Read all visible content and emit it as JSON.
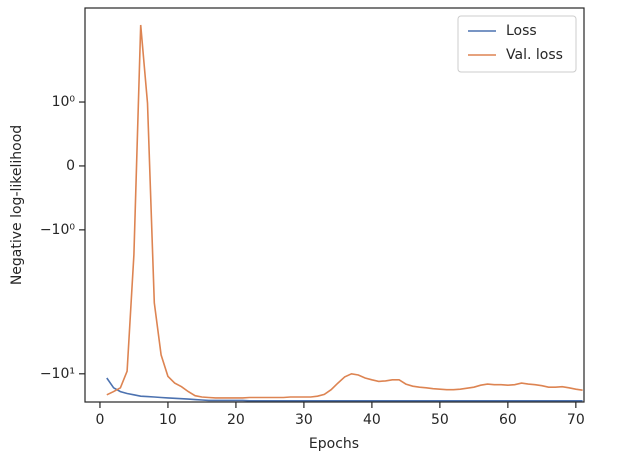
{
  "chart_data": {
    "type": "line",
    "xlabel": "Epochs",
    "ylabel": "Negative log-likelihood",
    "yscale": "symlog",
    "x": [
      1,
      2,
      3,
      4,
      5,
      6,
      7,
      8,
      9,
      10,
      11,
      12,
      13,
      14,
      15,
      16,
      17,
      18,
      19,
      20,
      21,
      22,
      23,
      24,
      25,
      26,
      27,
      28,
      29,
      30,
      31,
      32,
      33,
      34,
      35,
      36,
      37,
      38,
      39,
      40,
      41,
      42,
      43,
      44,
      45,
      46,
      47,
      48,
      49,
      50,
      51,
      52,
      53,
      54,
      55,
      56,
      57,
      58,
      59,
      60,
      61,
      62,
      63,
      64,
      65,
      66,
      67,
      68,
      69,
      70,
      71
    ],
    "series": [
      {
        "name": "Loss",
        "color": "#4c72b0",
        "values": [
          -10.7,
          -12.5,
          -13.3,
          -13.7,
          -14.0,
          -14.3,
          -14.4,
          -14.5,
          -14.6,
          -14.7,
          -14.8,
          -14.9,
          -15.0,
          -15.1,
          -15.2,
          -15.3,
          -15.3,
          -15.3,
          -15.3,
          -15.3,
          -15.3,
          -15.4,
          -15.4,
          -15.4,
          -15.4,
          -15.4,
          -15.4,
          -15.4,
          -15.4,
          -15.4,
          -15.4,
          -15.4,
          -15.4,
          -15.4,
          -15.4,
          -15.4,
          -15.4,
          -15.4,
          -15.4,
          -15.4,
          -15.4,
          -15.4,
          -15.4,
          -15.4,
          -15.4,
          -15.4,
          -15.4,
          -15.4,
          -15.4,
          -15.4,
          -15.4,
          -15.4,
          -15.4,
          -15.4,
          -15.4,
          -15.4,
          -15.4,
          -15.4,
          -15.4,
          -15.4,
          -15.4,
          -15.4,
          -15.4,
          -15.4,
          -15.4,
          -15.4,
          -15.4,
          -15.4,
          -15.4,
          -15.4,
          -15.4
        ]
      },
      {
        "name": "Val. loss",
        "color": "#dd8452",
        "values": [
          -14.0,
          -13.3,
          -12.5,
          -9.6,
          -1.49,
          3.43,
          0.985,
          -3.21,
          -7.39,
          -10.4,
          -11.6,
          -12.3,
          -13.3,
          -14.2,
          -14.5,
          -14.6,
          -14.7,
          -14.7,
          -14.7,
          -14.7,
          -14.7,
          -14.6,
          -14.6,
          -14.6,
          -14.6,
          -14.6,
          -14.6,
          -14.5,
          -14.5,
          -14.5,
          -14.5,
          -14.3,
          -13.9,
          -12.9,
          -11.6,
          -10.5,
          -10.0,
          -10.2,
          -10.7,
          -11.0,
          -11.3,
          -11.2,
          -11.0,
          -11.0,
          -11.8,
          -12.2,
          -12.4,
          -12.5,
          -12.7,
          -12.8,
          -12.9,
          -12.9,
          -12.8,
          -12.6,
          -12.4,
          -12.0,
          -11.8,
          -11.9,
          -11.9,
          -12.0,
          -11.9,
          -11.6,
          -11.8,
          -11.9,
          -12.1,
          -12.4,
          -12.4,
          -12.3,
          -12.5,
          -12.8,
          -13.0
        ]
      }
    ],
    "xlim": [
      -2.2,
      71.2
    ],
    "xticks": [
      0,
      10,
      20,
      30,
      40,
      50,
      60,
      70
    ],
    "ylim": [
      -15.7,
      4.5
    ],
    "yticks": [
      {
        "value": -10,
        "label": "−10¹"
      },
      {
        "value": -1,
        "label": "−10⁰"
      },
      0,
      {
        "value": 1,
        "label": "10⁰"
      }
    ],
    "legend": "upper right"
  }
}
